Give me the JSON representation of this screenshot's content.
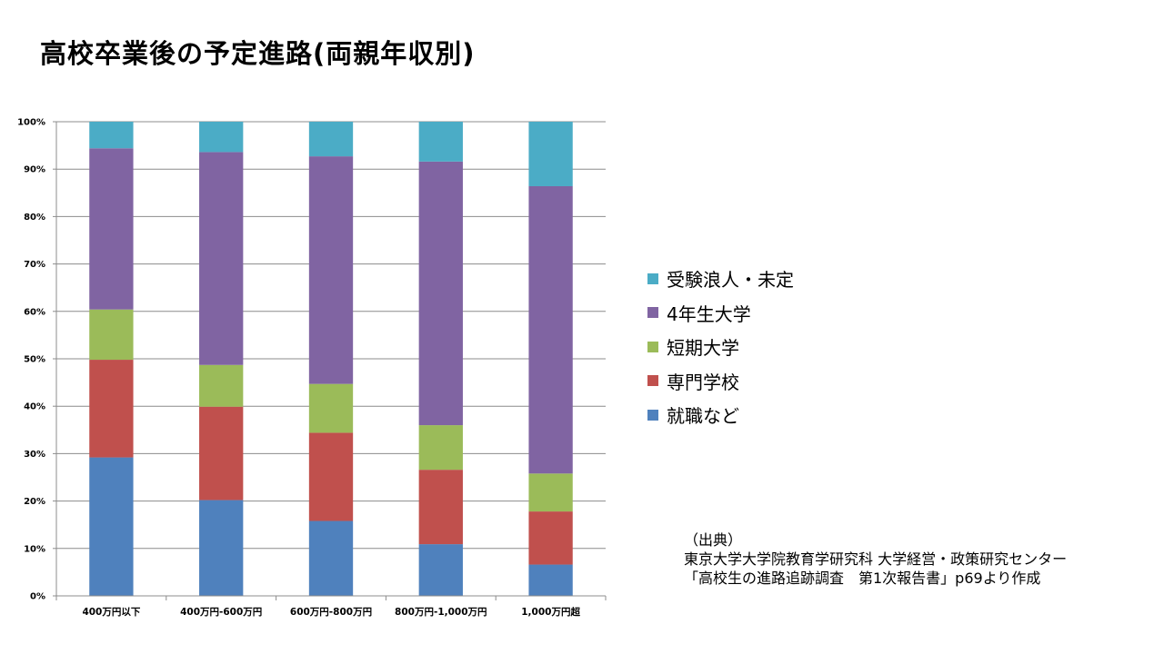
{
  "title": "高校卒業後の予定進路(両親年収別)",
  "chart_data": {
    "type": "bar",
    "stacked": true,
    "percent": true,
    "categories": [
      "400万円以下",
      "400万円-600万円",
      "600万円-800万円",
      "800万円-1,000万円",
      "1,000万円超"
    ],
    "series": [
      {
        "name": "就職など",
        "color": "#4F81BD",
        "values": [
          29.2,
          20.2,
          15.8,
          10.9,
          6.6
        ]
      },
      {
        "name": "専門学校",
        "color": "#C0504D",
        "values": [
          20.6,
          19.7,
          18.6,
          15.7,
          11.2
        ]
      },
      {
        "name": "短期大学",
        "color": "#9BBB59",
        "values": [
          10.6,
          8.8,
          10.3,
          9.4,
          8.0
        ]
      },
      {
        "name": "4年生大学",
        "color": "#8064A2",
        "values": [
          34.0,
          44.9,
          48.0,
          55.6,
          60.6
        ]
      },
      {
        "name": "受験浪人・未定",
        "color": "#4BACC6",
        "values": [
          5.6,
          6.4,
          7.3,
          8.4,
          13.6
        ]
      }
    ],
    "ylim": [
      0,
      100
    ],
    "yticks": [
      "0%",
      "10%",
      "20%",
      "30%",
      "40%",
      "50%",
      "60%",
      "70%",
      "80%",
      "90%",
      "100%"
    ],
    "grid": true,
    "legend_position": "right"
  },
  "legend": [
    {
      "label": "受験浪人・未定",
      "color": "#4BACC6"
    },
    {
      "label": "4年生大学",
      "color": "#8064A2"
    },
    {
      "label": "短期大学",
      "color": "#9BBB59"
    },
    {
      "label": "専門学校",
      "color": "#C0504D"
    },
    {
      "label": "就職など",
      "color": "#4F81BD"
    }
  ],
  "source": {
    "line1": "（出典）",
    "line2": "東京大学大学院教育学研究科 大学経営・政策研究センター",
    "line3": "「高校生の進路追跡調査　第1次報告書」p69より作成"
  }
}
